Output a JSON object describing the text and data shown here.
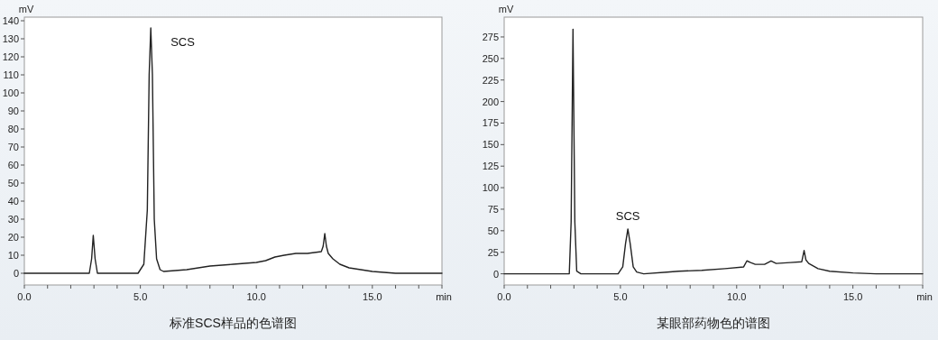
{
  "chart_data": [
    {
      "type": "line",
      "title": "标准SCS样品的色谱图",
      "xlabel": "min",
      "ylabel": "mV",
      "color": "#222222",
      "marker": "none",
      "line_style": "solid",
      "x": [
        0,
        1,
        2,
        2.8,
        2.9,
        2.97,
        3.05,
        3.15,
        4,
        4.9,
        5.15,
        5.3,
        5.38,
        5.45,
        5.52,
        5.6,
        5.7,
        5.85,
        6,
        7,
        8,
        9,
        10,
        10.4,
        10.8,
        11.2,
        11.7,
        12.2,
        12.8,
        12.88,
        12.95,
        13.02,
        13.1,
        13.3,
        13.6,
        14,
        14.5,
        15,
        16,
        17,
        18
      ],
      "values": [
        0,
        0,
        0,
        0,
        8,
        21,
        8,
        0,
        0,
        0,
        5,
        35,
        110,
        136,
        110,
        30,
        8,
        2,
        1,
        2,
        4,
        5,
        6,
        7,
        9,
        10,
        11,
        11,
        12,
        15,
        22,
        15,
        11,
        8,
        5,
        3,
        2,
        1,
        0,
        0,
        0
      ],
      "annotations": [
        {
          "text": "SCS",
          "x": 5.45,
          "y": 136
        }
      ],
      "xlim": [
        0,
        18
      ],
      "ylim": [
        -6.5,
        142
      ],
      "xticks": [
        {
          "value": 0,
          "label": "0.0"
        },
        {
          "value": 1,
          "label": null
        },
        {
          "value": 2,
          "label": null
        },
        {
          "value": 3,
          "label": null
        },
        {
          "value": 4,
          "label": null
        },
        {
          "value": 5,
          "label": "5.0"
        },
        {
          "value": 6,
          "label": null
        },
        {
          "value": 7,
          "label": null
        },
        {
          "value": 8,
          "label": null
        },
        {
          "value": 9,
          "label": null
        },
        {
          "value": 10,
          "label": "10.0"
        },
        {
          "value": 11,
          "label": null
        },
        {
          "value": 12,
          "label": null
        },
        {
          "value": 13,
          "label": null
        },
        {
          "value": 14,
          "label": null
        },
        {
          "value": 15,
          "label": "15.0"
        },
        {
          "value": 16,
          "label": null
        },
        {
          "value": 17,
          "label": null
        },
        {
          "value": 18,
          "label": null
        }
      ],
      "yticks": [
        0,
        10,
        20,
        30,
        40,
        50,
        60,
        70,
        80,
        90,
        100,
        110,
        120,
        130,
        140
      ]
    },
    {
      "type": "line",
      "title": "某眼部药物色的谱图",
      "xlabel": "min",
      "ylabel": "mV",
      "color": "#222222",
      "marker": "none",
      "line_style": "solid",
      "x": [
        0,
        1,
        2,
        2.8,
        2.88,
        2.96,
        3.04,
        3.12,
        3.3,
        4,
        4.9,
        5.1,
        5.22,
        5.32,
        5.42,
        5.55,
        5.7,
        6,
        7,
        7.5,
        8.5,
        9.5,
        10.3,
        10.44,
        10.6,
        10.8,
        11.2,
        11.48,
        11.7,
        12.3,
        12.8,
        12.9,
        12.98,
        13.1,
        13.5,
        14,
        15,
        16,
        17,
        18
      ],
      "values": [
        0,
        0,
        0,
        0,
        60,
        284,
        60,
        3,
        0,
        0,
        0,
        8,
        35,
        52,
        35,
        8,
        2,
        0,
        2,
        3,
        4,
        6,
        8,
        15,
        13,
        11,
        11,
        15,
        12,
        13,
        14,
        27,
        16,
        12,
        6,
        3,
        1,
        0,
        0,
        0
      ],
      "annotations": [
        {
          "text": "SCS",
          "x": 5.32,
          "y": 52
        }
      ],
      "xlim": [
        0,
        18
      ],
      "ylim": [
        -13,
        298
      ],
      "xticks": [
        {
          "value": 0,
          "label": "0.0"
        },
        {
          "value": 1,
          "label": null
        },
        {
          "value": 2,
          "label": null
        },
        {
          "value": 3,
          "label": null
        },
        {
          "value": 4,
          "label": null
        },
        {
          "value": 5,
          "label": "5.0"
        },
        {
          "value": 6,
          "label": null
        },
        {
          "value": 7,
          "label": null
        },
        {
          "value": 8,
          "label": null
        },
        {
          "value": 9,
          "label": null
        },
        {
          "value": 10,
          "label": "10.0"
        },
        {
          "value": 11,
          "label": null
        },
        {
          "value": 12,
          "label": null
        },
        {
          "value": 13,
          "label": null
        },
        {
          "value": 14,
          "label": null
        },
        {
          "value": 15,
          "label": "15.0"
        },
        {
          "value": 16,
          "label": null
        },
        {
          "value": 17,
          "label": null
        },
        {
          "value": 18,
          "label": null
        }
      ],
      "yticks": [
        0,
        25,
        50,
        75,
        100,
        125,
        150,
        175,
        200,
        225,
        250,
        275
      ]
    }
  ]
}
